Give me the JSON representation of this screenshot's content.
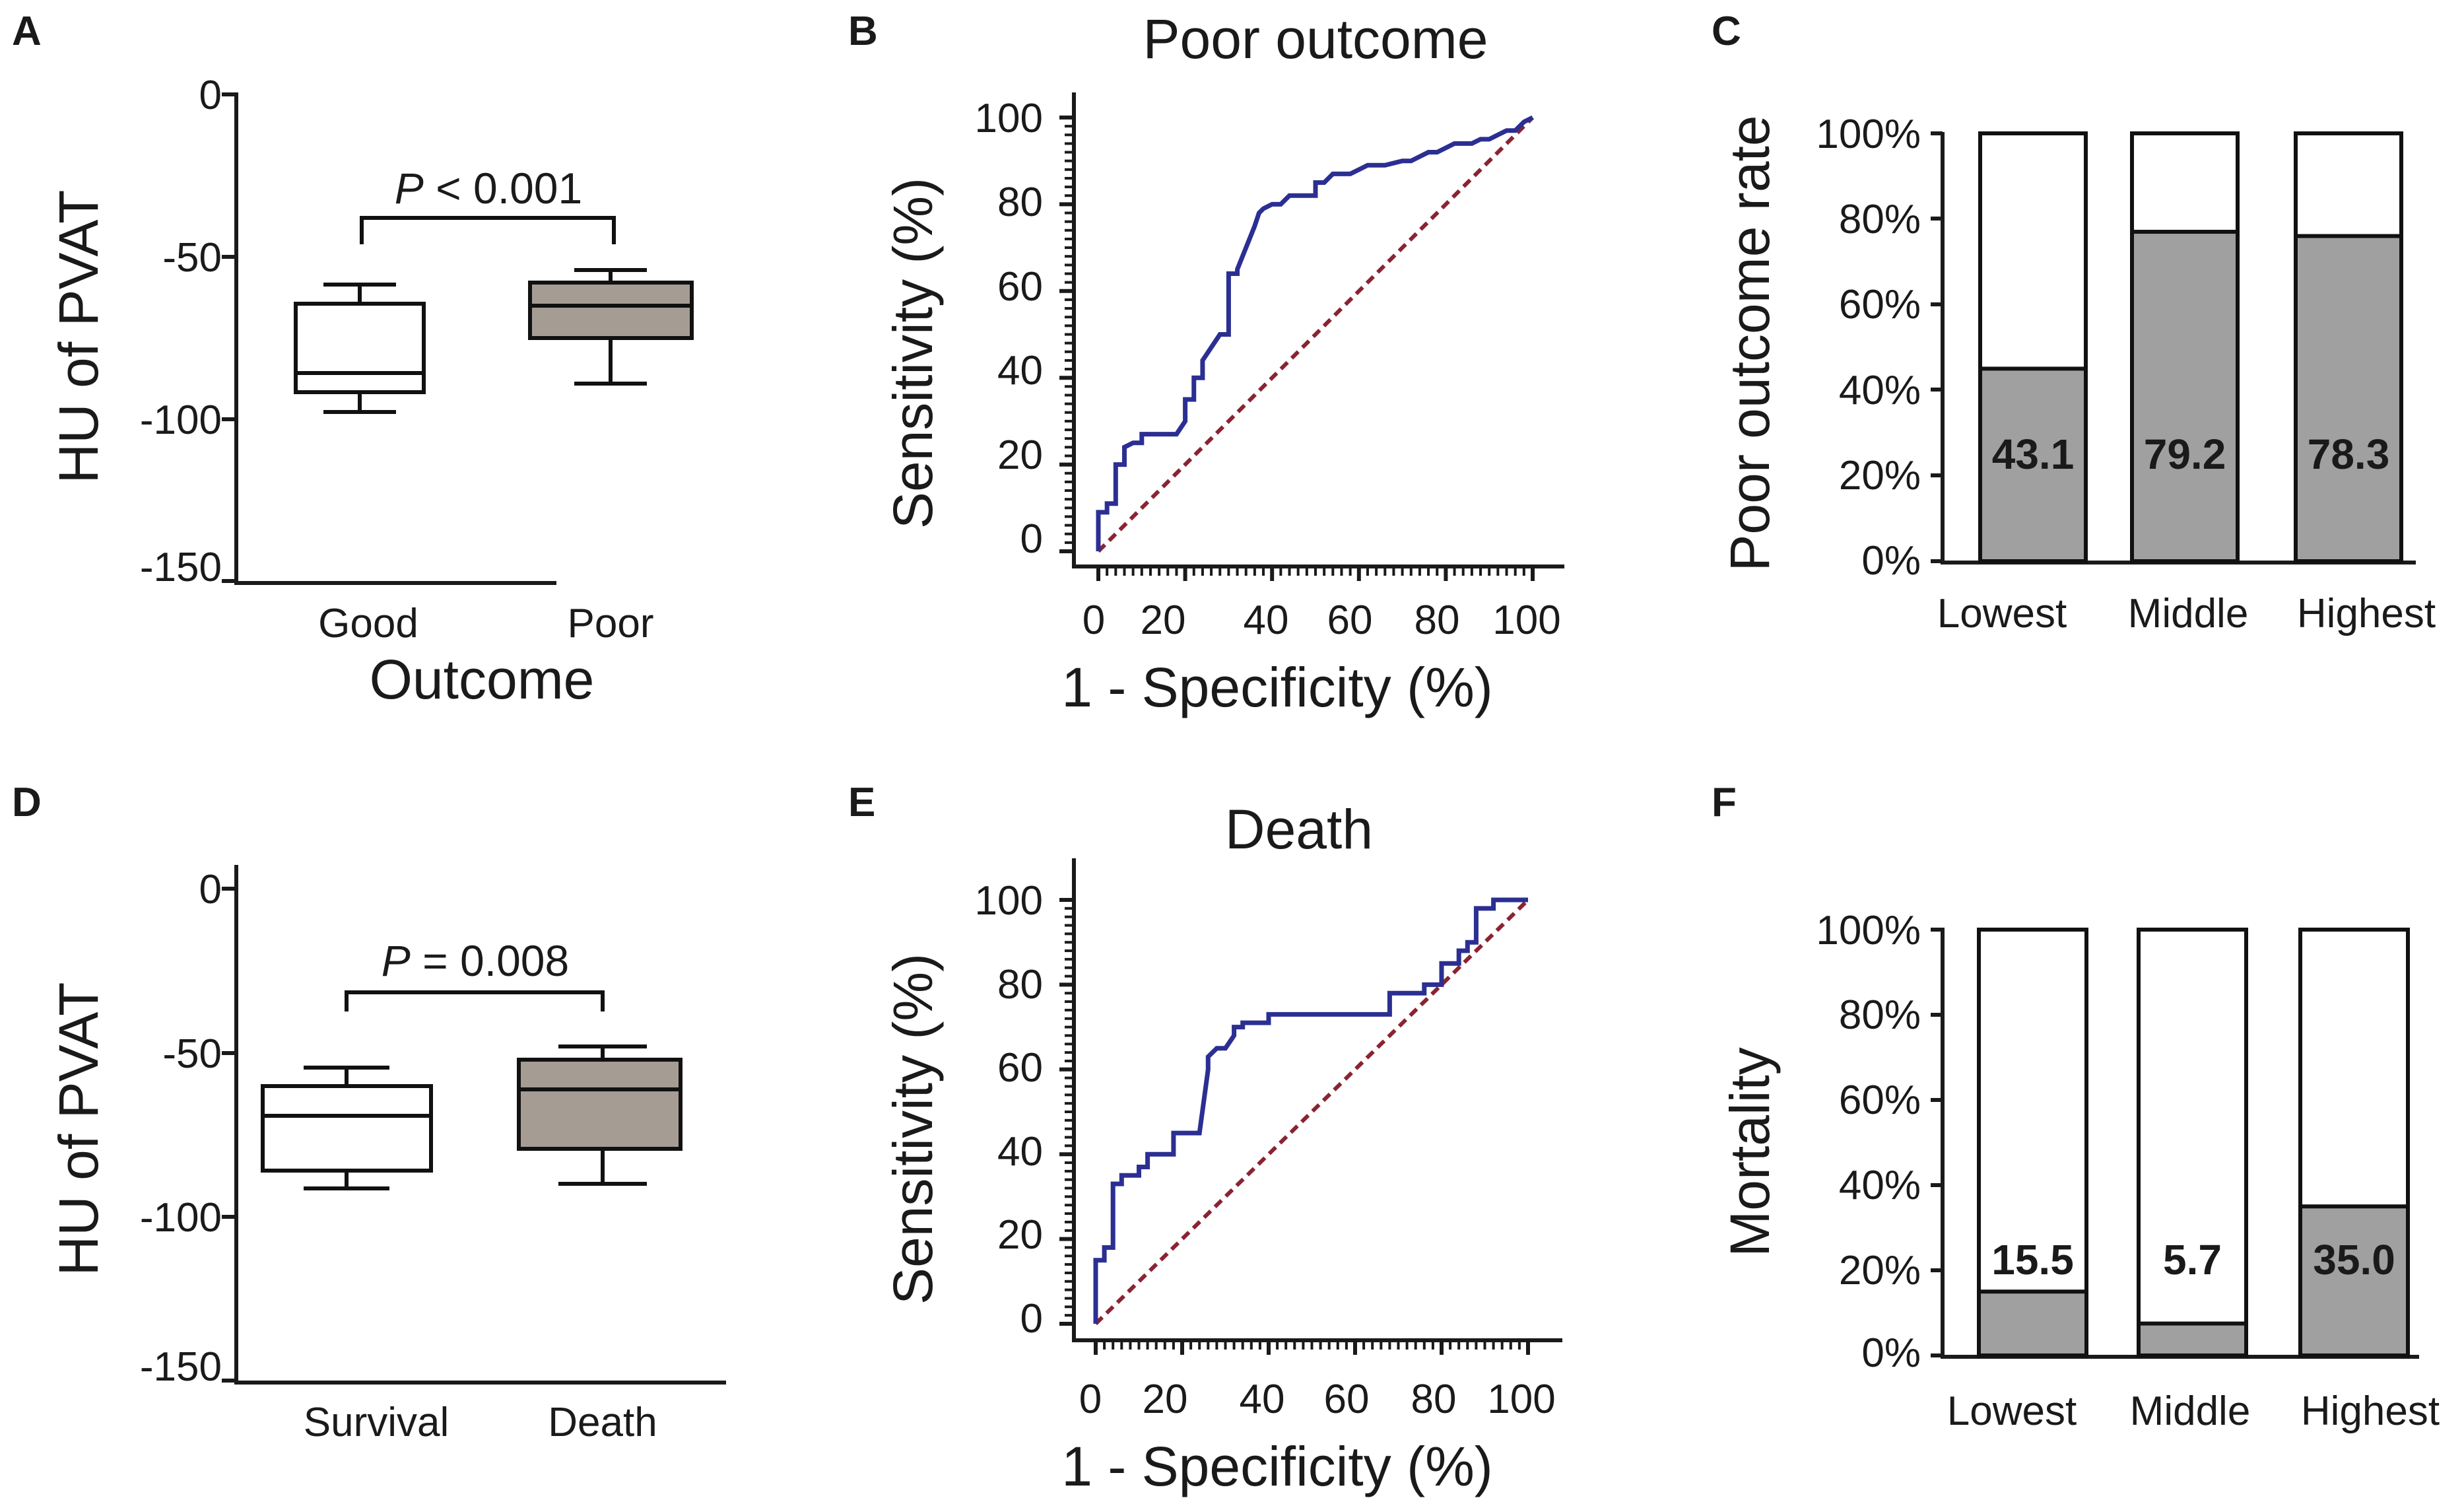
{
  "colors": {
    "box_good": "#ffffff",
    "box_poor": "#a59c94",
    "bar_fill": "#a0a0a0",
    "bar_empty": "#ffffff",
    "roc_line": "#2b2f92",
    "ref_line": "#8a2332"
  },
  "chart_data": [
    {
      "panel": "A",
      "type": "box",
      "ylabel": "HU of PVAT",
      "xlabel": "Outcome",
      "ylim": [
        -150,
        0
      ],
      "yticks": [
        0,
        -50,
        -100,
        -150
      ],
      "categories": [
        "Good",
        "Poor"
      ],
      "boxes": [
        {
          "name": "Good",
          "min": -98,
          "q1": -92,
          "median": -86,
          "q3": -65,
          "max": -58
        },
        {
          "name": "Poor",
          "min": -90,
          "q1": -75,
          "median": -65,
          "q3": -58,
          "max": -54
        }
      ],
      "annotation": {
        "italic": "P",
        "rest": " < 0.001"
      }
    },
    {
      "panel": "B",
      "type": "line",
      "title": "Poor outcome",
      "xlabel": "1 - Specificity (%)",
      "ylabel": "Sensitivity (%)",
      "xlim": [
        0,
        100
      ],
      "ylim": [
        0,
        100
      ],
      "xticks": [
        0,
        20,
        40,
        60,
        80,
        100
      ],
      "yticks": [
        0,
        20,
        40,
        60,
        80,
        100
      ],
      "series": [
        {
          "name": "ROC",
          "x": [
            0,
            0,
            2,
            2,
            4,
            4,
            6,
            6,
            8,
            10,
            10,
            18,
            20,
            20,
            22,
            22,
            24,
            24,
            26,
            28,
            30,
            30,
            32,
            32,
            36,
            37,
            38,
            40,
            42,
            44,
            50,
            50,
            52,
            54,
            58,
            60,
            62,
            66,
            70,
            72,
            74,
            76,
            78,
            80,
            82,
            86,
            88,
            90,
            92,
            94,
            96,
            98,
            100
          ],
          "y": [
            0,
            9,
            9,
            11,
            11,
            20,
            20,
            24,
            25,
            25,
            27,
            27,
            30,
            35,
            35,
            40,
            40,
            44,
            47,
            50,
            50,
            64,
            64,
            65,
            75,
            78,
            79,
            80,
            80,
            82,
            82,
            85,
            85,
            87,
            87,
            88,
            89,
            89,
            90,
            90,
            91,
            92,
            92,
            93,
            94,
            94,
            95,
            95,
            96,
            97,
            97,
            99,
            100
          ]
        },
        {
          "name": "Reference",
          "x": [
            0,
            100
          ],
          "y": [
            0,
            100
          ]
        }
      ]
    },
    {
      "panel": "C",
      "type": "bar",
      "ylabel": "Poor outcome rate",
      "ylim": [
        0,
        100
      ],
      "yticks": [
        "0%",
        "20%",
        "40%",
        "60%",
        "80%",
        "100%"
      ],
      "categories": [
        "Lowest",
        "Middle",
        "Highest"
      ],
      "values": [
        43.1,
        79.2,
        78.3
      ],
      "labels": [
        "43.1",
        "79.2",
        "78.3"
      ],
      "drawn_fill": [
        45,
        77,
        76
      ]
    },
    {
      "panel": "D",
      "type": "box",
      "ylabel": "HU of PVAT",
      "xlabel": "",
      "ylim": [
        -150,
        0
      ],
      "yticks": [
        0,
        -50,
        -100,
        -150
      ],
      "categories": [
        "Survival",
        "Death"
      ],
      "boxes": [
        {
          "name": "Survival",
          "min": -93,
          "q1": -88,
          "median": -71,
          "q3": -62,
          "max": -56
        },
        {
          "name": "Death",
          "min": -91,
          "q1": -80,
          "median": -63,
          "q3": -55,
          "max": -50
        }
      ],
      "annotation": {
        "italic": "P",
        "rest": " = 0.008"
      }
    },
    {
      "panel": "E",
      "type": "line",
      "title": "Death",
      "xlabel": "1 - Specificity (%)",
      "ylabel": "Sensitivity (%)",
      "xlim": [
        0,
        100
      ],
      "ylim": [
        0,
        100
      ],
      "xticks": [
        0,
        20,
        40,
        60,
        80,
        100
      ],
      "yticks": [
        0,
        20,
        40,
        60,
        80,
        100
      ],
      "series": [
        {
          "name": "ROC",
          "x": [
            0,
            0,
            2,
            2,
            4,
            4,
            6,
            6,
            10,
            10,
            12,
            12,
            18,
            18,
            24,
            26,
            26,
            28,
            30,
            32,
            32,
            34,
            34,
            40,
            40,
            68,
            68,
            76,
            76,
            80,
            80,
            82,
            84,
            84,
            86,
            86,
            88,
            88,
            92,
            92,
            100
          ],
          "y": [
            0,
            15,
            15,
            18,
            18,
            33,
            33,
            35,
            35,
            37,
            37,
            40,
            40,
            45,
            45,
            60,
            63,
            65,
            65,
            68,
            70,
            70,
            71,
            71,
            73,
            73,
            78,
            78,
            80,
            80,
            85,
            85,
            85,
            88,
            88,
            90,
            90,
            98,
            98,
            100,
            100
          ]
        },
        {
          "name": "Reference",
          "x": [
            0,
            100
          ],
          "y": [
            0,
            100
          ]
        }
      ]
    },
    {
      "panel": "F",
      "type": "bar",
      "ylabel": "Mortality",
      "ylim": [
        0,
        100
      ],
      "yticks": [
        "0%",
        "20%",
        "40%",
        "60%",
        "80%",
        "100%"
      ],
      "categories": [
        "Lowest",
        "Middle",
        "Highest"
      ],
      "values": [
        15.5,
        5.7,
        35.0
      ],
      "labels": [
        "15.5",
        "5.7",
        "35.0"
      ],
      "drawn_fill": [
        15,
        7.5,
        35
      ]
    }
  ]
}
